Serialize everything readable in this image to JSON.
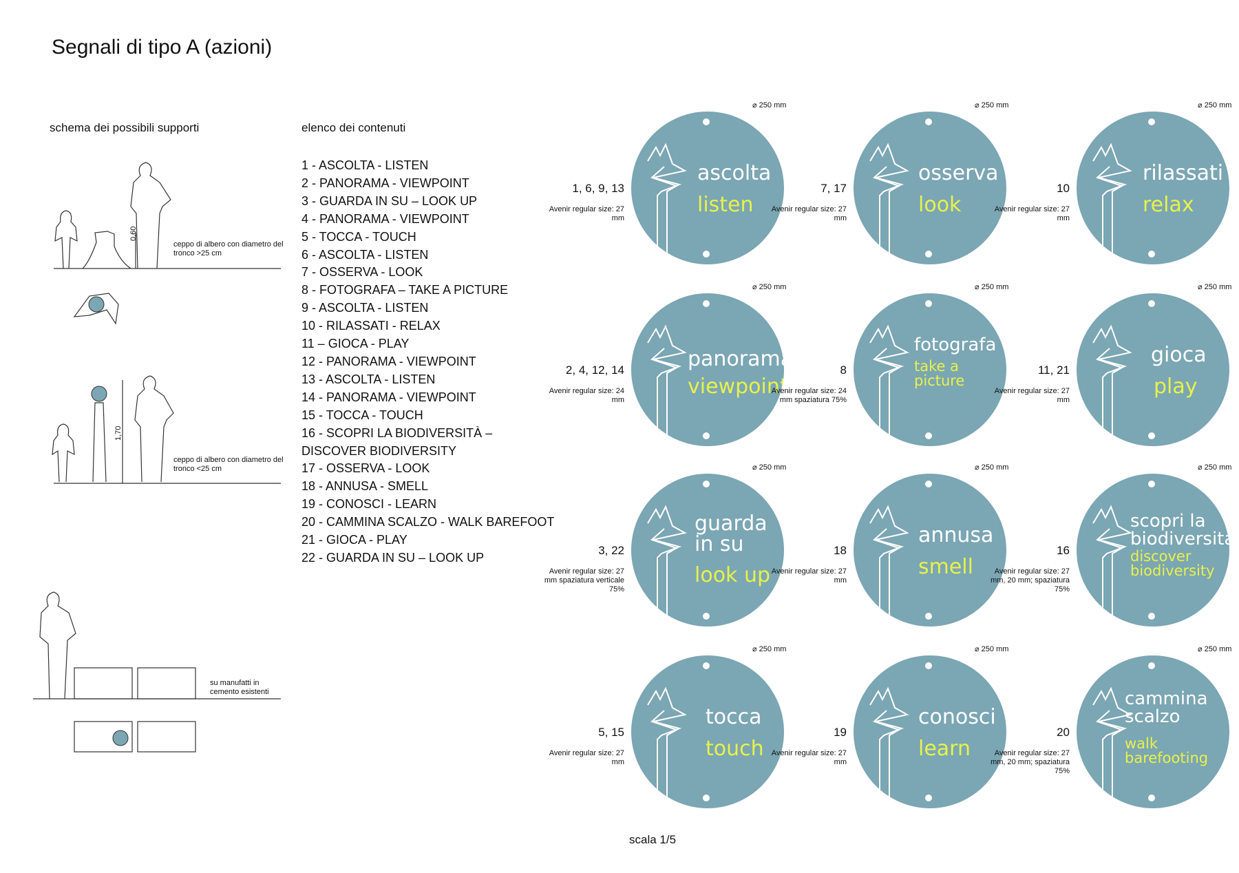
{
  "title": "Segnali di tipo A (azioni)",
  "supports_heading": "schema dei possibili supporti",
  "contents_heading": "elenco dei contenuti",
  "content_items": [
    "1 - ASCOLTA - LISTEN",
    "2 - PANORAMA - VIEWPOINT",
    "3 - GUARDA IN SU – LOOK UP",
    "4 - PANORAMA - VIEWPOINT",
    "5 - TOCCA - TOUCH",
    "6 - ASCOLTA - LISTEN",
    "7 - OSSERVA - LOOK",
    "8 - FOTOGRAFA – TAKE A PICTURE",
    "9 - ASCOLTA - LISTEN",
    "10 - RILASSATI - RELAX",
    "11 – GIOCA - PLAY",
    "12 - PANORAMA - VIEWPOINT",
    "13 - ASCOLTA - LISTEN",
    "14 - PANORAMA - VIEWPOINT",
    "15 - TOCCA - TOUCH",
    "16 - SCOPRI LA BIODIVERSITÀ –",
    "DISCOVER BIODIVERSITY",
    "17 - OSSERVA - LOOK",
    "18 - ANNUSA - SMELL",
    "19 - CONOSCI - LEARN",
    "20 - CAMMINA SCALZO - WALK BAREFOOT",
    "21 - GIOCA - PLAY",
    "22 - GUARDA IN SU – LOOK UP"
  ],
  "support_notes": {
    "stump_large": "ceppo di albero con diametro del tronco >25 cm",
    "stump_small": "ceppo di albero con diametro del tronco <25 cm",
    "concrete": "su manufatti in cemento esistenti",
    "dim_060": "0,60",
    "dim_170": "1,70"
  },
  "diameter_label": "⌀ 250 mm",
  "scale": "scala 1/5",
  "signs": [
    {
      "nums": "1, 6, 9, 13",
      "font": "Avenir regular size: 27 mm",
      "it": "ascolta",
      "en": "listen"
    },
    {
      "nums": "7, 17",
      "font": "Avenir regular size: 27 mm",
      "it": "osserva",
      "en": "look"
    },
    {
      "nums": "10",
      "font": "Avenir regular size: 27 mm",
      "it": "rilassati",
      "en": "relax"
    },
    {
      "nums": "2, 4, 12, 14",
      "font": "Avenir regular size: 24 mm",
      "it": "panorama",
      "en": "viewpoint"
    },
    {
      "nums": "8",
      "font": "Avenir regular size: 24 mm spaziatura 75%",
      "it": "fotografa",
      "en": "take a picture"
    },
    {
      "nums": "11, 21",
      "font": "Avenir regular size: 27 mm",
      "it": "gioca",
      "en": "play"
    },
    {
      "nums": "3, 22",
      "font": "Avenir regular size: 27 mm spaziatura verticale 75%",
      "it": "guarda in su",
      "en": "look up"
    },
    {
      "nums": "18",
      "font": "Avenir regular size: 27 mm",
      "it": "annusa",
      "en": "smell"
    },
    {
      "nums": "16",
      "font": "Avenir regular size: 27 mm, 20 mm; spaziatura 75%",
      "it": "scopri la biodiversità",
      "en": "discover biodiversity"
    },
    {
      "nums": "5, 15",
      "font": "Avenir regular size: 27 mm",
      "it": "tocca",
      "en": "touch"
    },
    {
      "nums": "19",
      "font": "Avenir regular size: 27 mm",
      "it": "conosci",
      "en": "learn"
    },
    {
      "nums": "20",
      "font": "Avenir regular size: 27 mm, 20 mm; spaziatura 75%",
      "it": "cammina scalzo",
      "en": "walk barefooting"
    }
  ],
  "colors": {
    "sign_bg": "#7ba6b3",
    "sign_accent": "#e8f24a",
    "sign_text": "#ffffff"
  }
}
